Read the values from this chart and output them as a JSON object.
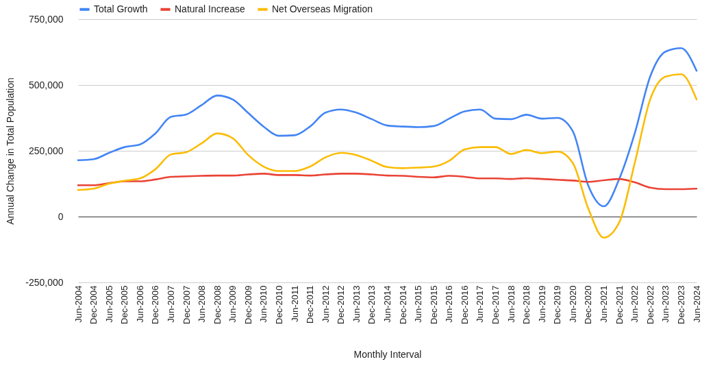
{
  "chart_data": {
    "type": "line",
    "xlabel": "Monthly Interval",
    "ylabel": "Annual Change in Total Population",
    "categories": [
      "Jun-2004",
      "Dec-2004",
      "Jun-2005",
      "Dec-2005",
      "Jun-2006",
      "Dec-2006",
      "Jun-2007",
      "Dec-2007",
      "Jun-2008",
      "Dec-2008",
      "Jun-2009",
      "Dec-2009",
      "Jun-2010",
      "Dec-2010",
      "Jun-2011",
      "Dec-2011",
      "Jun-2012",
      "Dec-2012",
      "Jun-2013",
      "Dec-2013",
      "Jun-2014",
      "Dec-2014",
      "Jun-2015",
      "Dec-2015",
      "Jun-2016",
      "Dec-2016",
      "Jun-2017",
      "Dec-2017",
      "Jun-2018",
      "Dec-2018",
      "Jun-2019",
      "Dec-2019",
      "Jun-2020",
      "Dec-2020",
      "Jun-2021",
      "Dec-2021",
      "Jun-2022",
      "Dec-2022",
      "Jun-2023",
      "Dec-2023",
      "Jun-2024"
    ],
    "series": [
      {
        "name": "Total Growth",
        "color": "#4285f4",
        "values": [
          214000,
          218000,
          242000,
          264000,
          274000,
          316000,
          379000,
          388000,
          424000,
          460000,
          445000,
          394000,
          342000,
          307000,
          309000,
          342000,
          395000,
          407000,
          395000,
          370000,
          346000,
          342000,
          340000,
          344000,
          372000,
          400000,
          407000,
          372000,
          370000,
          387000,
          372000,
          375000,
          324000,
          117000,
          39000,
          143000,
          316000,
          532000,
          627000,
          640000,
          554000
        ]
      },
      {
        "name": "Natural Increase",
        "color": "#ea4335",
        "values": [
          119000,
          119000,
          127000,
          134000,
          134000,
          141000,
          151000,
          153000,
          155000,
          156000,
          156000,
          160000,
          163000,
          158000,
          158000,
          156000,
          160000,
          163000,
          163000,
          160000,
          156000,
          155000,
          151000,
          149000,
          155000,
          151000,
          145000,
          145000,
          143000,
          146000,
          143000,
          140000,
          137000,
          132000,
          138000,
          143000,
          130000,
          110000,
          104000,
          104000,
          106000
        ]
      },
      {
        "name": "Net Overseas Migration",
        "color": "#fbbc04",
        "values": [
          101000,
          106000,
          125000,
          136000,
          145000,
          180000,
          236000,
          245000,
          279000,
          316000,
          298000,
          234000,
          190000,
          173000,
          173000,
          190000,
          225000,
          242000,
          234000,
          212000,
          188000,
          184000,
          186000,
          190000,
          212000,
          255000,
          264000,
          264000,
          238000,
          253000,
          241000,
          247000,
          203000,
          30000,
          -80000,
          -22000,
          203000,
          445000,
          532000,
          541000,
          445000
        ]
      }
    ],
    "ylim": [
      -250000,
      750000
    ],
    "yticks": [
      {
        "value": -250000,
        "label": "-250,000"
      },
      {
        "value": 0,
        "label": "0"
      },
      {
        "value": 250000,
        "label": "250,000"
      },
      {
        "value": 500000,
        "label": "500,000"
      },
      {
        "value": 750000,
        "label": "750,000"
      }
    ],
    "grid": "y",
    "legend": "top"
  }
}
